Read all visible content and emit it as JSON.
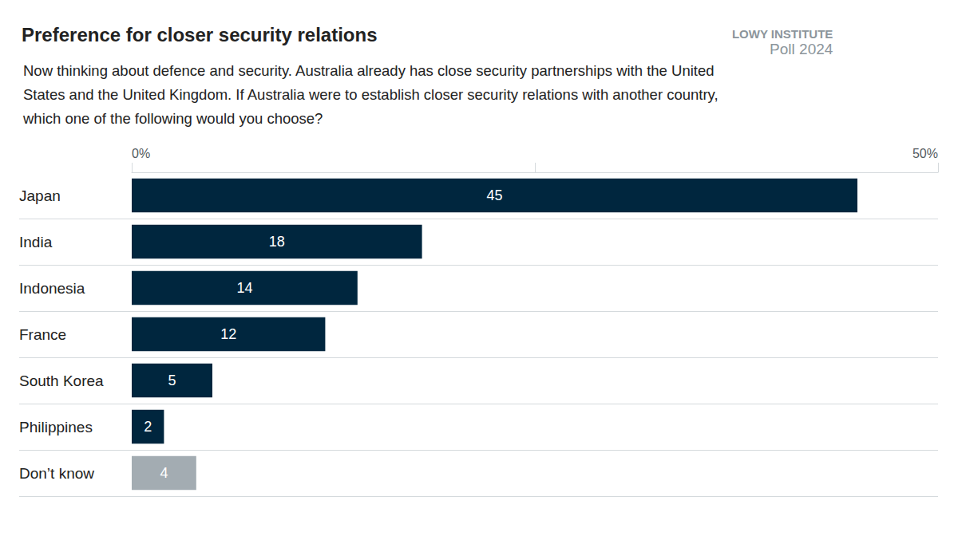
{
  "chart_data": {
    "type": "bar",
    "orientation": "horizontal",
    "title": "Preference for closer security relations",
    "subtitle": "Now thinking about defence and security. Australia already has close security partnerships with the United States and the United Kingdom. If Australia were to establish closer security relations with another country, which one of the following would you choose?",
    "annotations": [
      "LOWY INSTITUTE",
      "Poll 2024"
    ],
    "categories": [
      "Japan",
      "India",
      "Indonesia",
      "France",
      "South Korea",
      "Philippines",
      "Don’t know"
    ],
    "values": [
      45,
      18,
      14,
      12,
      5,
      2,
      4
    ],
    "colors": [
      "#00263e",
      "#00263e",
      "#00263e",
      "#00263e",
      "#00263e",
      "#00263e",
      "#a3acb2"
    ],
    "xlim": [
      0,
      50
    ],
    "xticks": [
      {
        "value": 0,
        "label": "0%"
      },
      {
        "value": 25,
        "label": null
      },
      {
        "value": 50,
        "label": "50%"
      }
    ],
    "data_labels": true,
    "grid": false
  }
}
